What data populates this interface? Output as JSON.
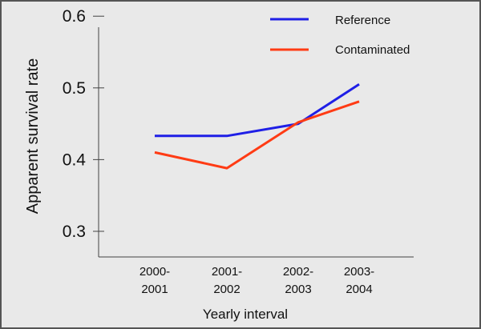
{
  "chart_data": {
    "type": "line",
    "categories": [
      [
        "2000-",
        "2001"
      ],
      [
        "2001-",
        "2002"
      ],
      [
        "2002-",
        "2003"
      ],
      [
        "2003-",
        "2004"
      ]
    ],
    "series": [
      {
        "name": "Reference",
        "color": "#1f1fe6",
        "values": [
          0.433,
          0.433,
          0.45,
          0.505
        ]
      },
      {
        "name": "Contaminated",
        "color": "#ff3b14",
        "values": [
          0.41,
          0.388,
          0.452,
          0.481
        ]
      }
    ],
    "yticks": [
      "0.6",
      "0.5",
      "0.4",
      "0.3"
    ],
    "ytick_values": [
      0.6,
      0.5,
      0.4,
      0.3
    ],
    "ylim": [
      0.26,
      0.62
    ],
    "xlabel": "Yearly interval",
    "ylabel": "Apparent survival rate",
    "legend_position": "top-right",
    "grid": false
  }
}
